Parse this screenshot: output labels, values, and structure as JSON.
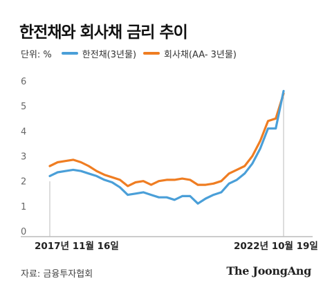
{
  "title": "한전채와 회사채 금리 추이",
  "unit_label": "단위: %",
  "source": "자료: 금융투자협회",
  "logo": "The JoongAng",
  "colors": {
    "kepco": "#4a9fd8",
    "corp": "#ef7d22",
    "axis": "#999999",
    "grid_marker": "#bbbbbb"
  },
  "chart_data": {
    "type": "line",
    "title": "한전채와 회사채 금리 추이",
    "unit": "%",
    "x_start_label": "2017년 11월 16일",
    "x_end_label": "2022년 10월 19일",
    "ylim": [
      0,
      6
    ],
    "yticks": [
      "0",
      "1",
      "2",
      "3",
      "4",
      "5",
      "6"
    ],
    "legend_position": "top-left",
    "grid": false,
    "x": [
      "2017-11",
      "2018-01",
      "2018-03",
      "2018-05",
      "2018-07",
      "2018-09",
      "2018-11",
      "2019-01",
      "2019-03",
      "2019-05",
      "2019-07",
      "2019-09",
      "2019-11",
      "2020-01",
      "2020-03",
      "2020-05",
      "2020-07",
      "2020-09",
      "2020-11",
      "2021-01",
      "2021-03",
      "2021-05",
      "2021-07",
      "2021-09",
      "2021-11",
      "2022-01",
      "2022-03",
      "2022-05",
      "2022-07",
      "2022-09",
      "2022-10"
    ],
    "series": [
      {
        "name": "한전채(3년물)",
        "color": "#4a9fd8",
        "values": [
          2.2,
          2.35,
          2.4,
          2.45,
          2.4,
          2.3,
          2.2,
          2.05,
          1.95,
          1.75,
          1.45,
          1.5,
          1.55,
          1.45,
          1.35,
          1.35,
          1.25,
          1.4,
          1.4,
          1.1,
          1.3,
          1.45,
          1.55,
          1.9,
          2.05,
          2.3,
          2.7,
          3.3,
          4.1,
          4.1,
          5.6
        ]
      },
      {
        "name": "회사채(AA- 3년물)",
        "color": "#ef7d22",
        "values": [
          2.6,
          2.75,
          2.8,
          2.85,
          2.75,
          2.6,
          2.4,
          2.25,
          2.15,
          2.05,
          1.8,
          1.95,
          2.0,
          1.85,
          2.0,
          2.05,
          2.05,
          2.1,
          2.05,
          1.85,
          1.85,
          1.9,
          2.0,
          2.3,
          2.45,
          2.6,
          3.0,
          3.6,
          4.4,
          4.5,
          5.5
        ]
      }
    ]
  }
}
